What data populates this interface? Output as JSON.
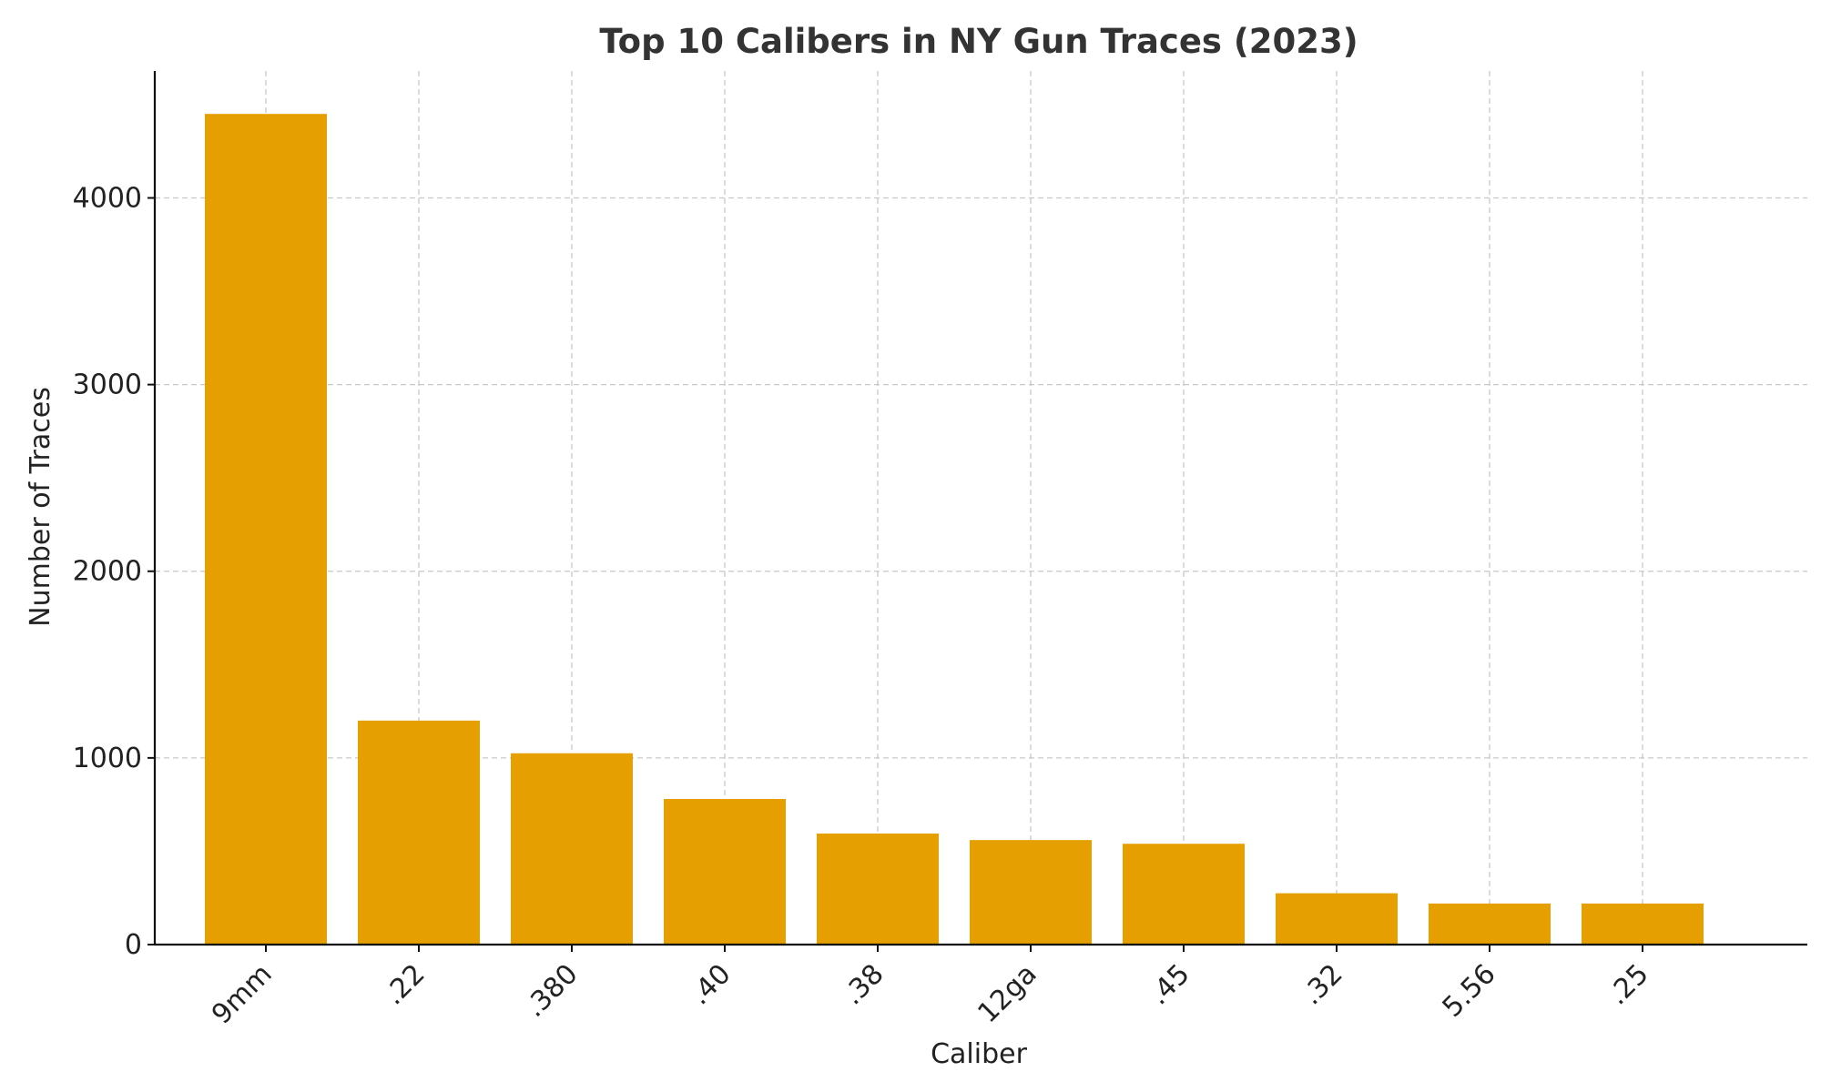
{
  "chart_data": {
    "type": "bar",
    "title": "Top 10 Calibers in NY Gun Traces (2023)",
    "xlabel": "Caliber",
    "ylabel": "Number of Traces",
    "categories": [
      "9mm",
      ".22",
      ".380",
      ".40",
      ".38",
      "12ga",
      ".45",
      ".32",
      "5.56",
      ".25"
    ],
    "values": [
      4450,
      1200,
      1025,
      780,
      595,
      560,
      540,
      275,
      220,
      220
    ],
    "ylim": [
      0,
      4680
    ],
    "yticks": [
      0,
      1000,
      2000,
      3000,
      4000
    ],
    "grid": true,
    "bar_color": "#E69F00"
  }
}
